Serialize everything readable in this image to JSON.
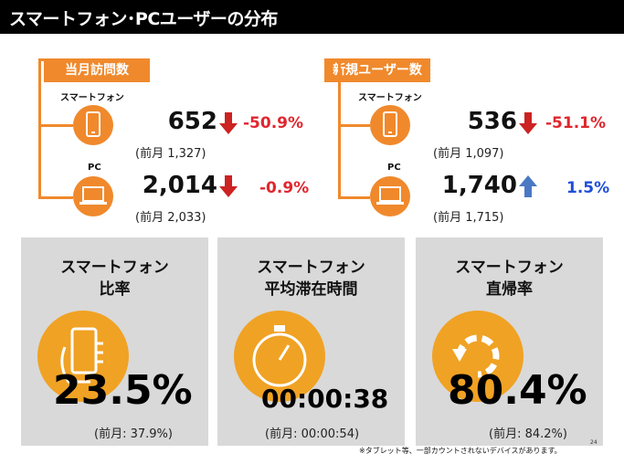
{
  "title": "スマートフォン･PCユーザーの分布",
  "left_group": {
    "tag": "当月訪問数",
    "smartphone": {
      "label": "スマートフォン",
      "value": "652",
      "change": "-50.9%",
      "prev": "(前月 1,327)",
      "trend": "down"
    },
    "pc": {
      "label": "PC",
      "value": "2,014",
      "change": "-0.9%",
      "prev": "(前月 2,033)",
      "trend": "down"
    }
  },
  "right_group": {
    "tag": "新規ユーザー数",
    "smartphone": {
      "label": "スマートフォン",
      "value": "536",
      "change": "-51.1%",
      "prev": "(前月 1,097)",
      "trend": "down"
    },
    "pc": {
      "label": "PC",
      "value": "1,740",
      "change": "1.5%",
      "prev": "(前月 1,715)",
      "trend": "up"
    }
  },
  "panels": [
    {
      "line1": "スマートフォン",
      "line2": "比率",
      "value": "23.5%",
      "prev": "(前月: 37.9%)",
      "icon": "hand-phone-icon"
    },
    {
      "line1": "スマートフォン",
      "line2": "平均滞在時間",
      "value": "00:00:38",
      "prev": "(前月: 00:00:54)",
      "icon": "stopwatch-icon"
    },
    {
      "line1": "スマートフォン",
      "line2": "直帰率",
      "value": "80.4%",
      "prev": "(前月: 84.2%)",
      "icon": "return-arrow-icon"
    }
  ],
  "note": "※タブレット等、一部カウントされないデバイスがあります。",
  "page_number": "24",
  "colors": {
    "accent": "#f0892c",
    "down": "#e0262d",
    "up": "#1f4fd8",
    "panel": "#d9d9d9"
  }
}
